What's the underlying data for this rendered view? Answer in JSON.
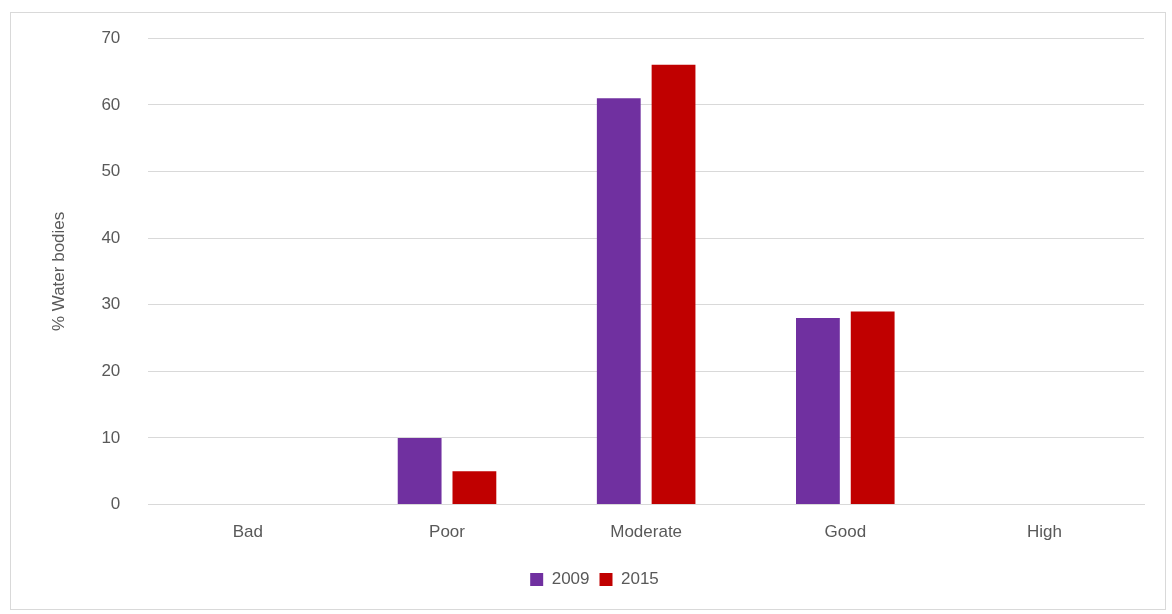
{
  "chart_data": {
    "type": "bar",
    "ylabel": "% Water bodies",
    "categories": [
      "Bad",
      "Poor",
      "Moderate",
      "Good",
      "High"
    ],
    "series": [
      {
        "name": "2009",
        "color": "#7030a0",
        "values": [
          0,
          10,
          61,
          28,
          0
        ]
      },
      {
        "name": "2015",
        "color": "#c00000",
        "values": [
          0,
          5,
          66,
          29,
          0
        ]
      }
    ],
    "ylim": [
      0,
      70
    ],
    "yticks": [
      0,
      10,
      20,
      30,
      40,
      50,
      60,
      70
    ],
    "grid": "y",
    "legend": "bottom"
  }
}
